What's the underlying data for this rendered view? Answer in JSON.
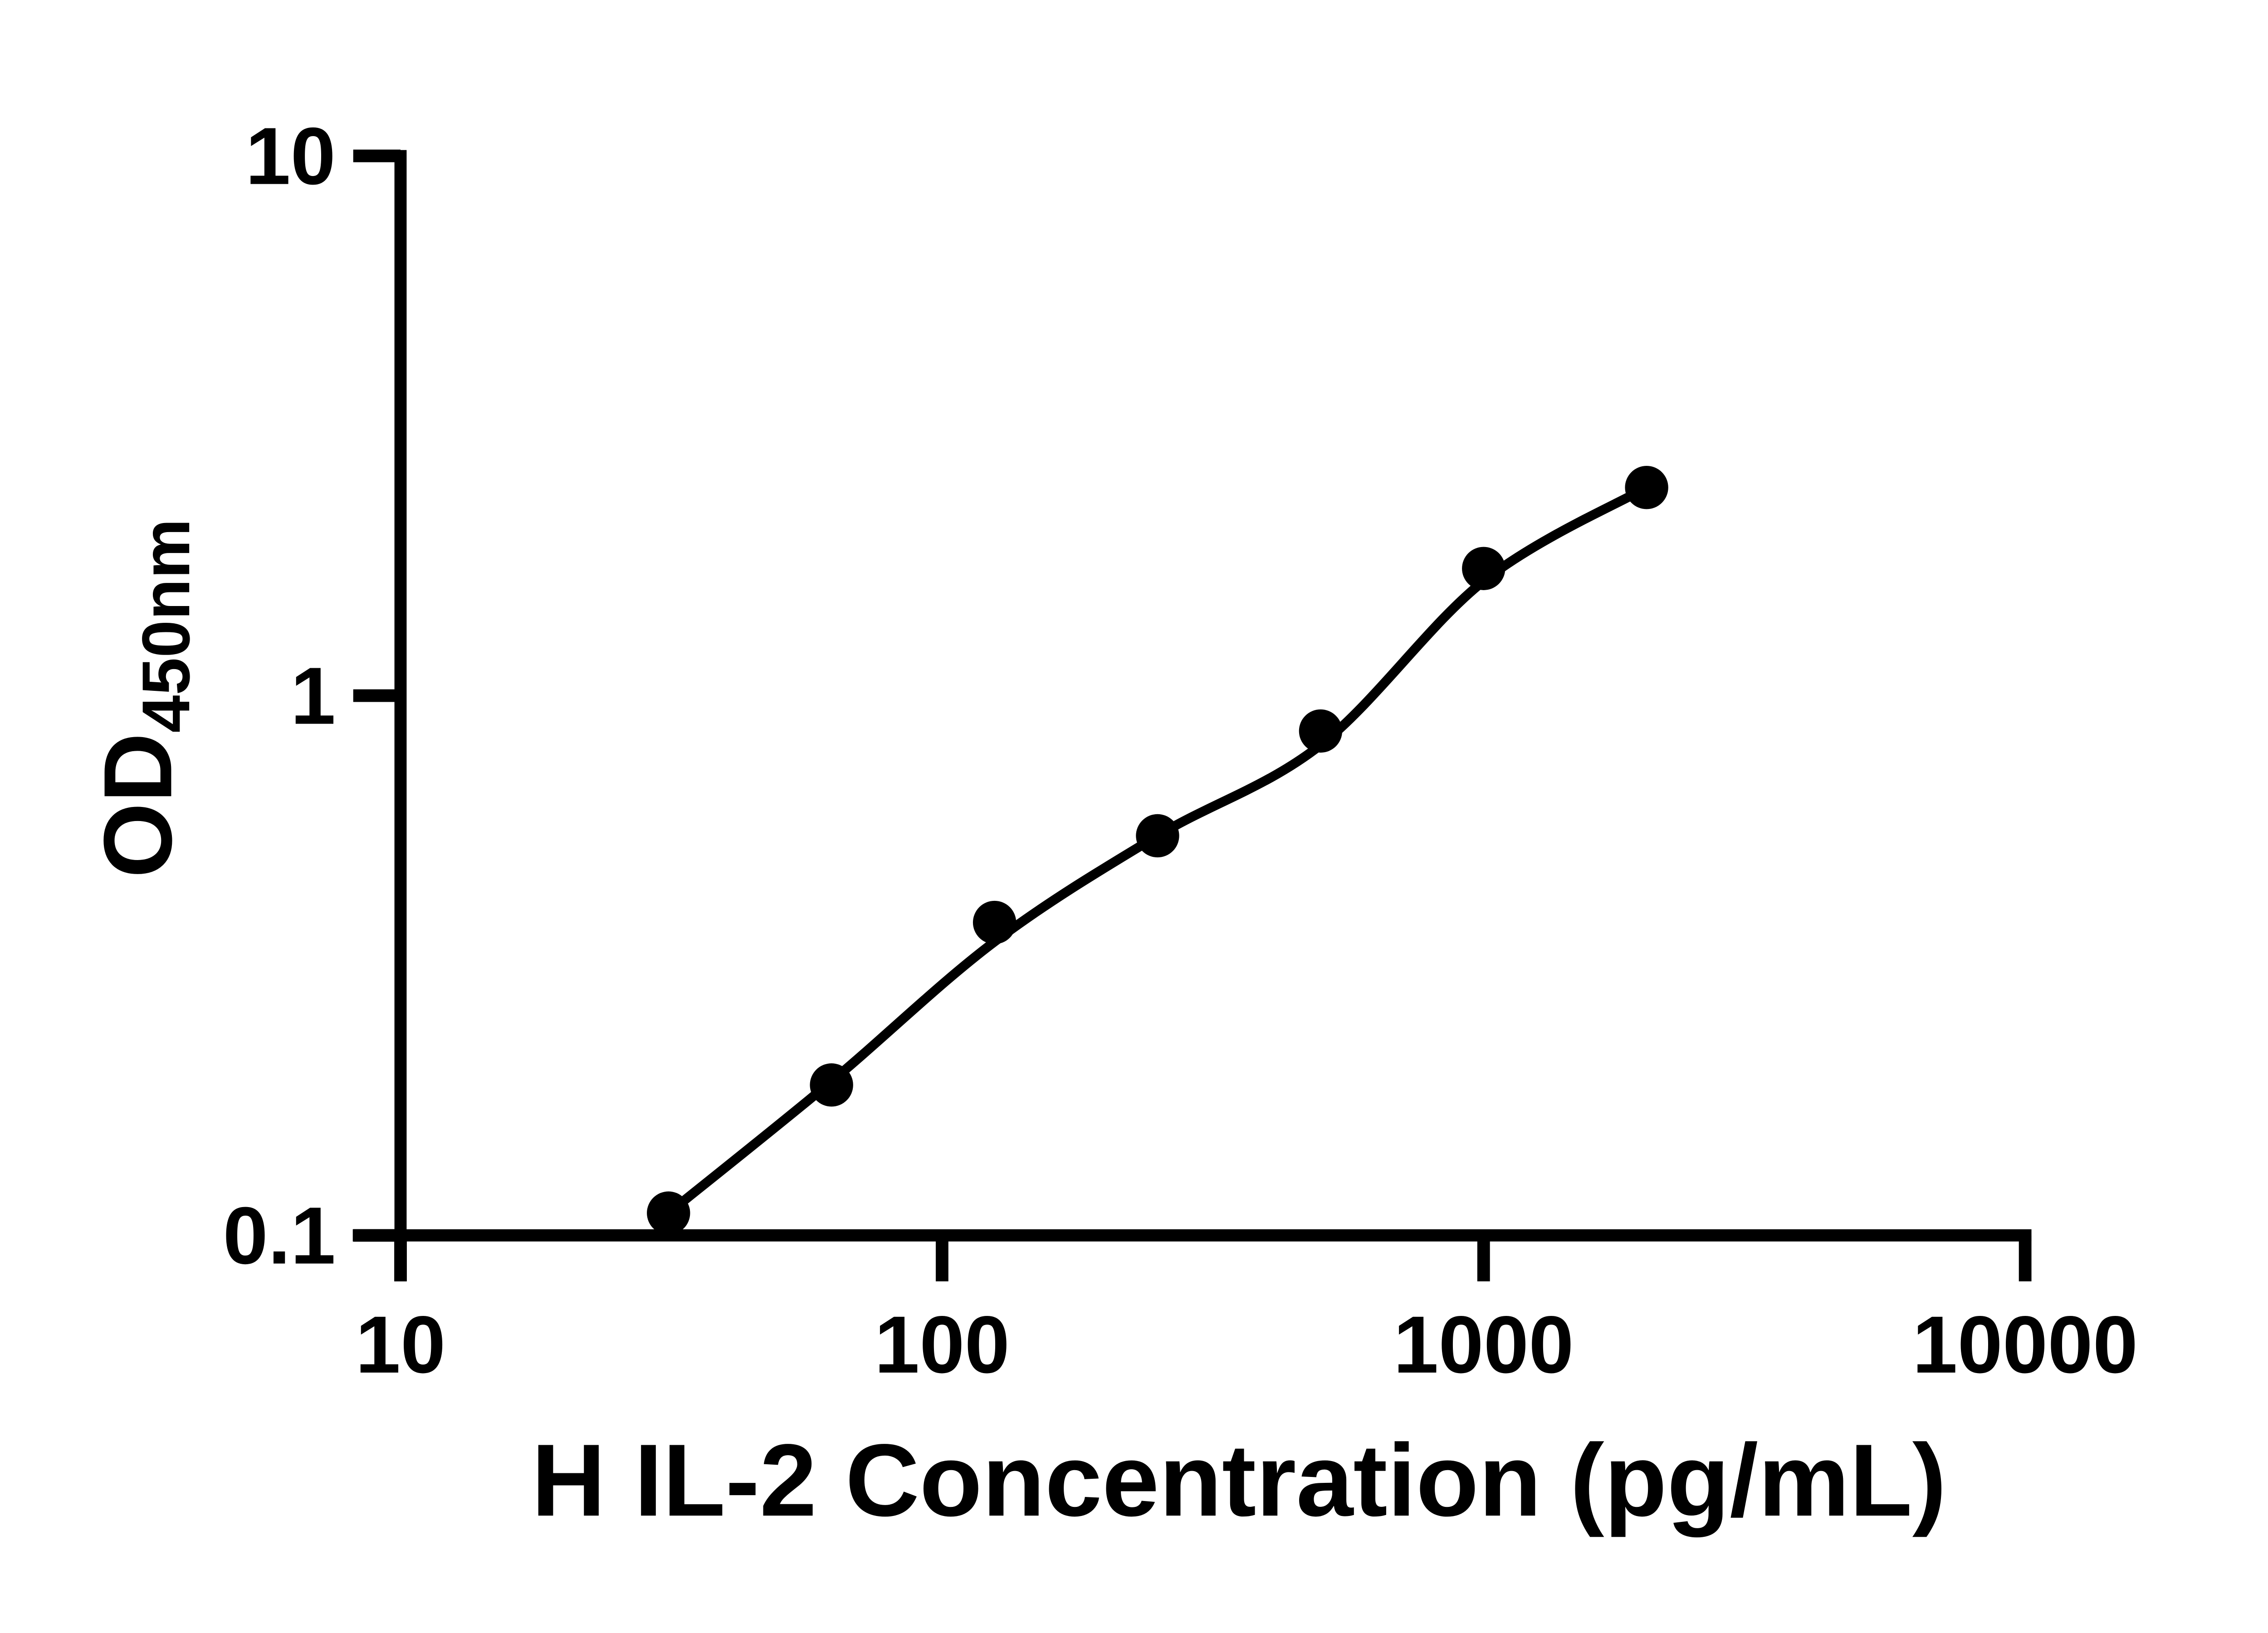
{
  "figure": {
    "background": "#ffffff",
    "ink_color": "#000000"
  },
  "chart_data": {
    "type": "scatter",
    "title": "",
    "xlabel": "H IL-2 Concentration (pg/mL)",
    "ylabel": "OD450nm",
    "ylabel_main": "OD",
    "ylabel_sub": "450nm",
    "x_scale": "log10",
    "y_scale": "log10",
    "xlim": [
      10,
      10000
    ],
    "ylim": [
      0.1,
      10
    ],
    "grid": false,
    "legend": "none",
    "x_ticks": [
      {
        "value": 10,
        "label": "10"
      },
      {
        "value": 100,
        "label": "100"
      },
      {
        "value": 1000,
        "label": "1000"
      },
      {
        "value": 10000,
        "label": "10000"
      }
    ],
    "y_ticks": [
      {
        "value": 10,
        "label": "10"
      },
      {
        "value": 1,
        "label": "1"
      },
      {
        "value": 0.1,
        "label": "0.1"
      }
    ],
    "series": [
      {
        "name": "standard-points",
        "style": "filled-circle-markers",
        "x": [
          31.25,
          62.5,
          125,
          250,
          500,
          1000,
          2000
        ],
        "y": [
          0.11,
          0.19,
          0.38,
          0.55,
          0.86,
          1.72,
          2.43
        ]
      },
      {
        "name": "fitted-curve",
        "style": "smooth-line",
        "x": [
          31.25,
          62.5,
          125,
          250,
          500,
          1000,
          2000
        ],
        "y": [
          0.11,
          0.193,
          0.35,
          0.55,
          0.81,
          1.63,
          2.43
        ]
      }
    ]
  }
}
